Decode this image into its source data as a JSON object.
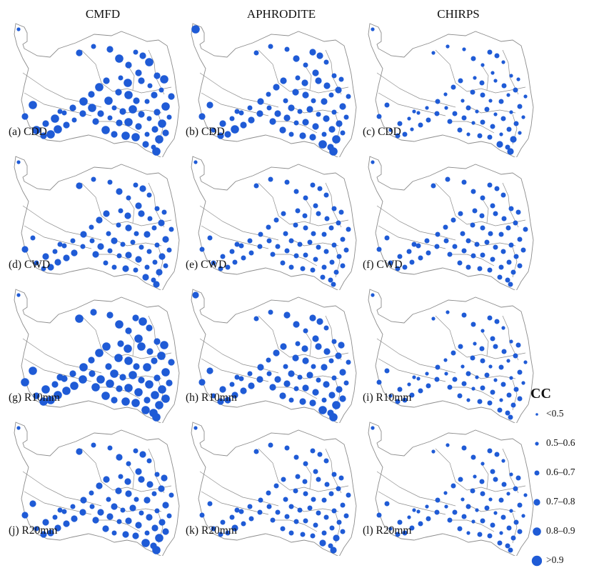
{
  "columns": [
    "CMFD",
    "APHRODITE",
    "CHIRPS"
  ],
  "panels": [
    {
      "label": "(a) CDD",
      "sizes": [
        2,
        4,
        3,
        4,
        5,
        4,
        3,
        4,
        5,
        4,
        3,
        5,
        4,
        3,
        4,
        5,
        3,
        4,
        3,
        4,
        5,
        4,
        5,
        3,
        4,
        5,
        4,
        3,
        4,
        5,
        4,
        3,
        5,
        4,
        3,
        4,
        5,
        4,
        3,
        4,
        5,
        4,
        3,
        4,
        5,
        5,
        4,
        5,
        4,
        5,
        3,
        4,
        5,
        4,
        5,
        4,
        5,
        4,
        3,
        4,
        5,
        4,
        5,
        5,
        4,
        3,
        5,
        4,
        5
      ]
    },
    {
      "label": "(b) CDD",
      "sizes": [
        5,
        3,
        3,
        3,
        4,
        3,
        4,
        4,
        3,
        4,
        3,
        4,
        4,
        4,
        3,
        3,
        4,
        3,
        4,
        3,
        4,
        4,
        3,
        4,
        3,
        4,
        3,
        4,
        3,
        4,
        3,
        3,
        4,
        4,
        3,
        4,
        4,
        3,
        4,
        4,
        3,
        4,
        4,
        4,
        5,
        4,
        4,
        3,
        4,
        3,
        3,
        3,
        4,
        3,
        4,
        4,
        4,
        4,
        3,
        4,
        4,
        3,
        4,
        4,
        5,
        4,
        5,
        3,
        5
      ]
    },
    {
      "label": "(c) CDD",
      "sizes": [
        2,
        2,
        2,
        2,
        3,
        2,
        3,
        3,
        2,
        2,
        2,
        3,
        2,
        3,
        2,
        2,
        3,
        2,
        3,
        2,
        3,
        3,
        2,
        3,
        2,
        3,
        2,
        3,
        2,
        3,
        2,
        2,
        3,
        3,
        2,
        3,
        3,
        2,
        3,
        3,
        2,
        3,
        3,
        3,
        2,
        3,
        3,
        2,
        3,
        2,
        2,
        2,
        3,
        2,
        3,
        3,
        3,
        3,
        2,
        3,
        3,
        2,
        3,
        3,
        4,
        3,
        4,
        2,
        4
      ]
    },
    {
      "label": "(d) CWD",
      "sizes": [
        2,
        4,
        3,
        3,
        4,
        3,
        3,
        4,
        3,
        4,
        3,
        4,
        4,
        3,
        3,
        3,
        4,
        3,
        4,
        3,
        4,
        3,
        3,
        4,
        3,
        3,
        3,
        3,
        3,
        4,
        3,
        3,
        4,
        3,
        3,
        4,
        4,
        3,
        3,
        4,
        3,
        3,
        4,
        4,
        4,
        4,
        3,
        3,
        4,
        3,
        3,
        3,
        4,
        3,
        4,
        4,
        3,
        4,
        3,
        4,
        3,
        3,
        4,
        3,
        4,
        3,
        4,
        3,
        4
      ]
    },
    {
      "label": "(e) CWD",
      "sizes": [
        2,
        3,
        3,
        3,
        3,
        3,
        3,
        3,
        3,
        3,
        3,
        3,
        3,
        3,
        3,
        3,
        3,
        3,
        3,
        3,
        3,
        3,
        3,
        3,
        3,
        3,
        3,
        3,
        3,
        3,
        3,
        3,
        3,
        3,
        3,
        3,
        3,
        3,
        3,
        3,
        3,
        3,
        3,
        3,
        3,
        3,
        3,
        3,
        3,
        3,
        3,
        3,
        3,
        3,
        3,
        3,
        3,
        3,
        3,
        3,
        3,
        3,
        3,
        3,
        3,
        3,
        3,
        3,
        3
      ]
    },
    {
      "label": "(f) CWD",
      "sizes": [
        2,
        3,
        3,
        3,
        3,
        3,
        3,
        3,
        3,
        3,
        3,
        3,
        3,
        3,
        3,
        3,
        3,
        3,
        3,
        3,
        3,
        3,
        3,
        3,
        3,
        3,
        3,
        3,
        3,
        3,
        3,
        3,
        3,
        3,
        3,
        3,
        3,
        3,
        3,
        3,
        3,
        3,
        3,
        3,
        3,
        3,
        3,
        3,
        3,
        3,
        3,
        3,
        3,
        3,
        3,
        3,
        3,
        3,
        3,
        3,
        3,
        3,
        3,
        3,
        3,
        3,
        3,
        3,
        3
      ]
    },
    {
      "label": "(g) R10mm",
      "sizes": [
        2,
        5,
        4,
        4,
        5,
        4,
        4,
        5,
        4,
        5,
        4,
        5,
        5,
        4,
        4,
        5,
        5,
        4,
        5,
        4,
        5,
        5,
        4,
        5,
        4,
        5,
        4,
        5,
        4,
        5,
        4,
        4,
        5,
        5,
        4,
        5,
        5,
        4,
        5,
        5,
        4,
        5,
        5,
        5,
        5,
        5,
        5,
        4,
        5,
        4,
        4,
        4,
        5,
        4,
        5,
        5,
        5,
        5,
        4,
        5,
        5,
        4,
        5,
        5,
        5,
        5,
        5,
        5,
        5
      ]
    },
    {
      "label": "(h) R10mm",
      "sizes": [
        4,
        3,
        3,
        4,
        4,
        3,
        4,
        4,
        3,
        4,
        3,
        4,
        4,
        4,
        3,
        4,
        4,
        3,
        4,
        3,
        4,
        4,
        3,
        4,
        3,
        4,
        3,
        4,
        3,
        4,
        3,
        3,
        4,
        4,
        3,
        4,
        4,
        3,
        4,
        4,
        3,
        4,
        4,
        4,
        4,
        4,
        4,
        3,
        4,
        3,
        3,
        3,
        4,
        3,
        4,
        4,
        4,
        4,
        3,
        4,
        4,
        3,
        4,
        4,
        5,
        4,
        5,
        4,
        5
      ]
    },
    {
      "label": "(i) R10mm",
      "sizes": [
        2,
        2,
        2,
        3,
        3,
        2,
        3,
        3,
        2,
        3,
        2,
        3,
        3,
        3,
        2,
        3,
        3,
        2,
        3,
        2,
        3,
        3,
        2,
        3,
        2,
        3,
        2,
        3,
        2,
        3,
        2,
        2,
        3,
        3,
        2,
        3,
        3,
        2,
        3,
        3,
        2,
        3,
        3,
        3,
        3,
        3,
        3,
        2,
        3,
        2,
        2,
        2,
        3,
        2,
        3,
        3,
        3,
        3,
        2,
        3,
        3,
        2,
        3,
        3,
        3,
        3,
        3,
        3,
        3
      ]
    },
    {
      "label": "(j) R20mm",
      "sizes": [
        2,
        4,
        3,
        3,
        4,
        3,
        3,
        4,
        3,
        4,
        3,
        4,
        4,
        4,
        3,
        4,
        4,
        3,
        4,
        3,
        4,
        4,
        3,
        4,
        3,
        4,
        3,
        4,
        3,
        4,
        3,
        3,
        4,
        4,
        3,
        4,
        4,
        3,
        4,
        4,
        3,
        4,
        4,
        4,
        4,
        4,
        4,
        3,
        4,
        3,
        3,
        3,
        4,
        3,
        4,
        4,
        4,
        4,
        3,
        4,
        4,
        3,
        4,
        4,
        5,
        4,
        5,
        4,
        5
      ]
    },
    {
      "label": "(k) R20mm",
      "sizes": [
        2,
        3,
        3,
        3,
        3,
        3,
        3,
        3,
        3,
        3,
        3,
        3,
        3,
        3,
        3,
        3,
        3,
        3,
        3,
        3,
        3,
        3,
        3,
        3,
        3,
        3,
        3,
        3,
        3,
        3,
        3,
        3,
        3,
        3,
        3,
        3,
        3,
        3,
        3,
        3,
        3,
        3,
        3,
        3,
        4,
        3,
        3,
        3,
        3,
        3,
        3,
        3,
        3,
        3,
        3,
        3,
        3,
        3,
        3,
        3,
        3,
        3,
        3,
        3,
        4,
        3,
        4,
        3,
        4
      ]
    },
    {
      "label": "(l) R20mm",
      "sizes": [
        2,
        2,
        2,
        3,
        3,
        2,
        3,
        3,
        2,
        3,
        2,
        3,
        3,
        3,
        2,
        3,
        3,
        2,
        3,
        2,
        3,
        3,
        2,
        3,
        2,
        3,
        2,
        3,
        2,
        3,
        2,
        2,
        3,
        3,
        2,
        3,
        3,
        2,
        3,
        3,
        2,
        3,
        3,
        3,
        3,
        3,
        3,
        2,
        3,
        2,
        2,
        2,
        3,
        2,
        3,
        3,
        3,
        3,
        2,
        3,
        3,
        2,
        3,
        3,
        3,
        3,
        3,
        3,
        3
      ]
    }
  ],
  "legend": {
    "title": "CC",
    "items": [
      {
        "label": "<0.5",
        "size": 1
      },
      {
        "label": "0.5–0.6",
        "size": 2
      },
      {
        "label": "0.6–0.7",
        "size": 3
      },
      {
        "label": "0.7–0.8",
        "size": 4
      },
      {
        "label": "0.8–0.9",
        "size": 5
      },
      {
        "label": ">0.9",
        "size": 6
      }
    ]
  },
  "colors": {
    "marker": "#1f5bd6",
    "boundary": "#8c8c8c"
  }
}
